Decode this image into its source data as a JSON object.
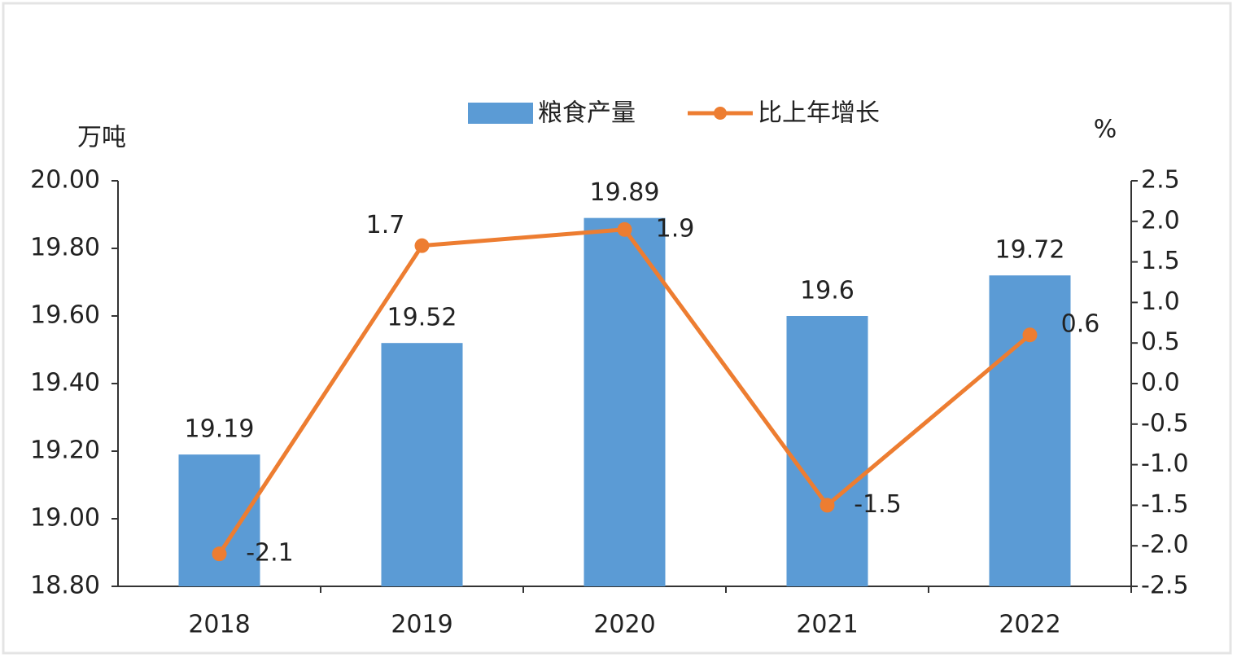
{
  "chart_data": {
    "type": "bar",
    "categories": [
      "2018",
      "2019",
      "2020",
      "2021",
      "2022"
    ],
    "y_label": "万吨",
    "y2_label": "%",
    "series": [
      {
        "name": "粮食产量",
        "type": "bar",
        "color": "#5b9bd5",
        "values": [
          19.19,
          19.52,
          19.89,
          19.6,
          19.72
        ]
      },
      {
        "name": "比上年增长",
        "type": "line",
        "axis": "y2",
        "color": "#ed7d31",
        "values": [
          -2.1,
          1.7,
          1.9,
          -1.5,
          0.6
        ]
      }
    ],
    "ylim": [
      18.8,
      20.0
    ],
    "yticks": [
      {
        "value": 18.8,
        "label": "18.80"
      },
      {
        "value": 19,
        "label": "19.00"
      },
      {
        "value": 19.2,
        "label": "19.20"
      },
      {
        "value": 19.4,
        "label": "19.40"
      },
      {
        "value": 19.6,
        "label": "19.60"
      },
      {
        "value": 19.8,
        "label": "19.80"
      },
      {
        "value": 20,
        "label": "20.00"
      }
    ],
    "y2lim": [
      -2.5,
      2.5
    ],
    "y2ticks": [
      -2.5,
      {
        "value": -2,
        "label": "-2.0"
      },
      -1.5,
      {
        "value": -1,
        "label": "-1.0"
      },
      -0.5,
      {
        "value": 0,
        "label": "0.0"
      },
      0.5,
      {
        "value": 1,
        "label": "1.0"
      },
      1.5,
      {
        "value": 2,
        "label": "2.0"
      },
      2.5
    ],
    "legend": "top"
  }
}
